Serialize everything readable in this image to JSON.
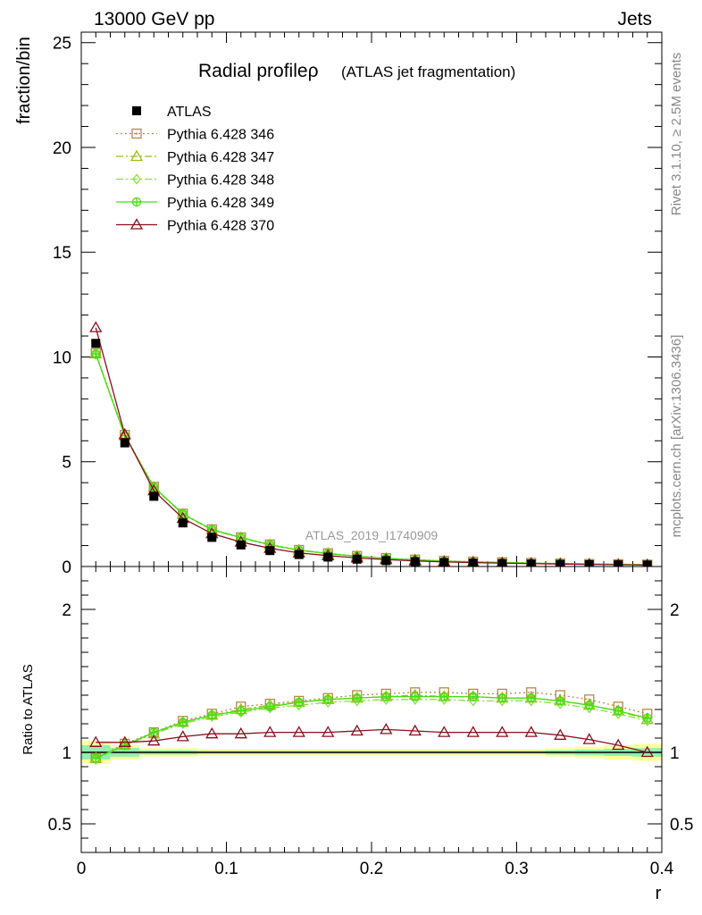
{
  "header": {
    "left": "13000 GeV pp",
    "right": "Jets"
  },
  "side_labels": {
    "rivet": "Rivet 3.1.10, ≥ 2.5M events",
    "mcplots": "mcplots.cern.ch [arXiv:1306.3436]"
  },
  "chart_data": [
    {
      "type": "line",
      "title": "Radial profileρ",
      "subtitle": "(ATLAS jet fragmentation)",
      "watermark": "ATLAS_2019_I1740909",
      "ylabel": "fraction/bin",
      "xlim": [
        0,
        0.4
      ],
      "ylim": [
        0,
        25.5
      ],
      "yticks": [
        0,
        5,
        10,
        15,
        20,
        25
      ],
      "legend_position": "top-left",
      "colors": {
        "atlas": "#000000",
        "p346": "#b8884a",
        "p347": "#9ebe10",
        "p348": "#88e040",
        "p349": "#40e010",
        "p370": "#8b0f1e"
      },
      "x": [
        0.01,
        0.03,
        0.05,
        0.07,
        0.09,
        0.11,
        0.13,
        0.15,
        0.17,
        0.19,
        0.21,
        0.23,
        0.25,
        0.27,
        0.29,
        0.31,
        0.33,
        0.35,
        0.37,
        0.39
      ],
      "series": [
        {
          "name": "ATLAS",
          "key": "atlas",
          "marker": "square-filled",
          "line": "none",
          "values": [
            10.65,
            5.9,
            3.35,
            2.08,
            1.39,
            1.03,
            0.76,
            0.57,
            0.45,
            0.35,
            0.28,
            0.23,
            0.19,
            0.16,
            0.14,
            0.12,
            0.1,
            0.09,
            0.08,
            0.07
          ]
        },
        {
          "name": "Pythia 6.428 346",
          "key": "p346",
          "marker": "square-open",
          "line": "dotted",
          "values": [
            10.18,
            6.28,
            3.8,
            2.52,
            1.77,
            1.39,
            1.05,
            0.79,
            0.63,
            0.5,
            0.4,
            0.33,
            0.27,
            0.23,
            0.2,
            0.17,
            0.14,
            0.12,
            0.11,
            0.09
          ]
        },
        {
          "name": "Pythia 6.428 347",
          "key": "p347",
          "marker": "triangle-open",
          "line": "dashdot",
          "values": [
            10.15,
            6.25,
            3.78,
            2.5,
            1.75,
            1.37,
            1.03,
            0.78,
            0.62,
            0.49,
            0.39,
            0.32,
            0.26,
            0.22,
            0.19,
            0.16,
            0.14,
            0.12,
            0.1,
            0.09
          ]
        },
        {
          "name": "Pythia 6.428 348",
          "key": "p348",
          "marker": "diamond-open",
          "line": "dashdot",
          "values": [
            10.12,
            6.22,
            3.76,
            2.49,
            1.74,
            1.36,
            1.02,
            0.77,
            0.61,
            0.48,
            0.39,
            0.32,
            0.26,
            0.22,
            0.19,
            0.16,
            0.13,
            0.11,
            0.1,
            0.09
          ]
        },
        {
          "name": "Pythia 6.428 349",
          "key": "p349",
          "marker": "cross-circle",
          "line": "solid",
          "values": [
            10.14,
            6.24,
            3.79,
            2.51,
            1.76,
            1.38,
            1.04,
            0.78,
            0.62,
            0.49,
            0.39,
            0.32,
            0.26,
            0.22,
            0.19,
            0.16,
            0.14,
            0.12,
            0.1,
            0.09
          ]
        },
        {
          "name": "Pythia 6.428 370",
          "key": "p370",
          "marker": "triangle-open",
          "line": "solid",
          "values": [
            11.4,
            6.3,
            3.62,
            2.3,
            1.57,
            1.17,
            0.87,
            0.65,
            0.52,
            0.41,
            0.33,
            0.27,
            0.22,
            0.19,
            0.16,
            0.14,
            0.12,
            0.1,
            0.09,
            0.07
          ]
        }
      ]
    },
    {
      "type": "line",
      "ylabel": "Ratio to ATLAS",
      "xlabel": "r",
      "xlim": [
        0,
        0.4
      ],
      "ylim": [
        0.3,
        2.3
      ],
      "yticks": [
        0.5,
        1,
        2
      ],
      "ytick_labels": [
        "0.5",
        "1",
        "2"
      ],
      "xticks": [
        0,
        0.1,
        0.2,
        0.3,
        0.4
      ],
      "xtick_labels": [
        "0",
        "0.1",
        "0.2",
        "0.3",
        "0.4"
      ],
      "band_colors": {
        "outer": "#ffffa0",
        "inner": "#90f0b0"
      },
      "bands": {
        "outer": [
          [
            0.92,
            1.08
          ],
          [
            0.95,
            1.05
          ],
          [
            0.97,
            1.03
          ],
          [
            0.97,
            1.03
          ],
          [
            0.975,
            1.025
          ],
          [
            0.975,
            1.025
          ],
          [
            0.975,
            1.025
          ],
          [
            0.975,
            1.025
          ],
          [
            0.975,
            1.025
          ],
          [
            0.975,
            1.025
          ],
          [
            0.975,
            1.025
          ],
          [
            0.975,
            1.025
          ],
          [
            0.975,
            1.025
          ],
          [
            0.975,
            1.025
          ],
          [
            0.975,
            1.025
          ],
          [
            0.975,
            1.025
          ],
          [
            0.97,
            1.03
          ],
          [
            0.96,
            1.04
          ],
          [
            0.95,
            1.05
          ],
          [
            0.94,
            1.06
          ]
        ],
        "inner": [
          [
            0.95,
            1.05
          ],
          [
            0.97,
            1.03
          ],
          [
            0.985,
            1.015
          ],
          [
            0.985,
            1.015
          ],
          [
            0.99,
            1.01
          ],
          [
            0.99,
            1.01
          ],
          [
            0.99,
            1.01
          ],
          [
            0.99,
            1.01
          ],
          [
            0.99,
            1.01
          ],
          [
            0.99,
            1.01
          ],
          [
            0.99,
            1.01
          ],
          [
            0.99,
            1.01
          ],
          [
            0.99,
            1.01
          ],
          [
            0.99,
            1.01
          ],
          [
            0.99,
            1.01
          ],
          [
            0.99,
            1.01
          ],
          [
            0.985,
            1.015
          ],
          [
            0.98,
            1.02
          ],
          [
            0.975,
            1.025
          ],
          [
            0.97,
            1.03
          ]
        ]
      },
      "x": [
        0.01,
        0.03,
        0.05,
        0.07,
        0.09,
        0.11,
        0.13,
        0.15,
        0.17,
        0.19,
        0.21,
        0.23,
        0.25,
        0.27,
        0.29,
        0.31,
        0.33,
        0.35,
        0.37,
        0.39
      ],
      "series": [
        {
          "key": "p346",
          "values": [
            0.96,
            1.06,
            1.14,
            1.22,
            1.27,
            1.32,
            1.34,
            1.36,
            1.38,
            1.4,
            1.41,
            1.42,
            1.42,
            1.41,
            1.41,
            1.42,
            1.4,
            1.37,
            1.32,
            1.27
          ]
        },
        {
          "key": "p347",
          "values": [
            0.96,
            1.05,
            1.13,
            1.21,
            1.26,
            1.3,
            1.33,
            1.35,
            1.37,
            1.38,
            1.39,
            1.4,
            1.39,
            1.39,
            1.38,
            1.38,
            1.36,
            1.33,
            1.29,
            1.23
          ]
        },
        {
          "key": "p348",
          "values": [
            0.95,
            1.05,
            1.13,
            1.2,
            1.25,
            1.28,
            1.31,
            1.33,
            1.35,
            1.36,
            1.37,
            1.37,
            1.37,
            1.36,
            1.36,
            1.36,
            1.34,
            1.31,
            1.27,
            1.22
          ]
        },
        {
          "key": "p349",
          "values": [
            0.96,
            1.05,
            1.14,
            1.21,
            1.26,
            1.29,
            1.32,
            1.35,
            1.37,
            1.38,
            1.39,
            1.39,
            1.39,
            1.39,
            1.38,
            1.38,
            1.36,
            1.33,
            1.29,
            1.24
          ]
        },
        {
          "key": "p370",
          "values": [
            1.07,
            1.07,
            1.08,
            1.11,
            1.13,
            1.13,
            1.14,
            1.14,
            1.14,
            1.15,
            1.16,
            1.15,
            1.14,
            1.14,
            1.14,
            1.14,
            1.12,
            1.09,
            1.05,
            1.0
          ]
        }
      ]
    }
  ]
}
